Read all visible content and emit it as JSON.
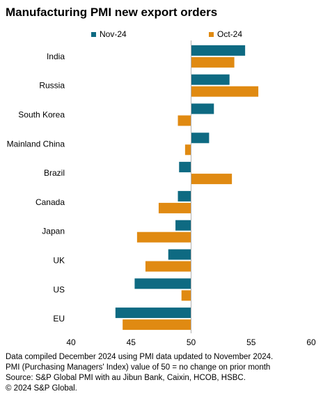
{
  "chart_data": {
    "type": "bar",
    "orientation": "horizontal",
    "title": "Manufacturing PMI new export orders",
    "categories": [
      "India",
      "Russia",
      "South Korea",
      "Mainland China",
      "Brazil",
      "Canada",
      "Japan",
      "UK",
      "US",
      "EU"
    ],
    "series": [
      {
        "name": "Nov-24",
        "color": "#0e6a82",
        "values": [
          54.5,
          53.2,
          51.9,
          51.5,
          49.0,
          48.9,
          48.7,
          48.1,
          45.3,
          43.7
        ]
      },
      {
        "name": "Oct-24",
        "color": "#e08a12",
        "values": [
          53.6,
          55.6,
          48.9,
          49.5,
          53.4,
          47.3,
          45.5,
          46.2,
          49.2,
          44.3
        ]
      }
    ],
    "xlim": [
      40,
      60
    ],
    "xticks": [
      "40",
      "45",
      "50",
      "55",
      "60"
    ],
    "baseline": 50,
    "legend_position": "top"
  },
  "notes": [
    "Data compiled December 2024 using PMI data updated to November 2024.",
    "PMI (Purchasing Managers' Index) value of 50 = no change on prior month",
    "Source: S&P Global PMI with au Jibun Bank, Caixin, HCOB, HSBC.",
    "© 2024 S&P Global."
  ]
}
